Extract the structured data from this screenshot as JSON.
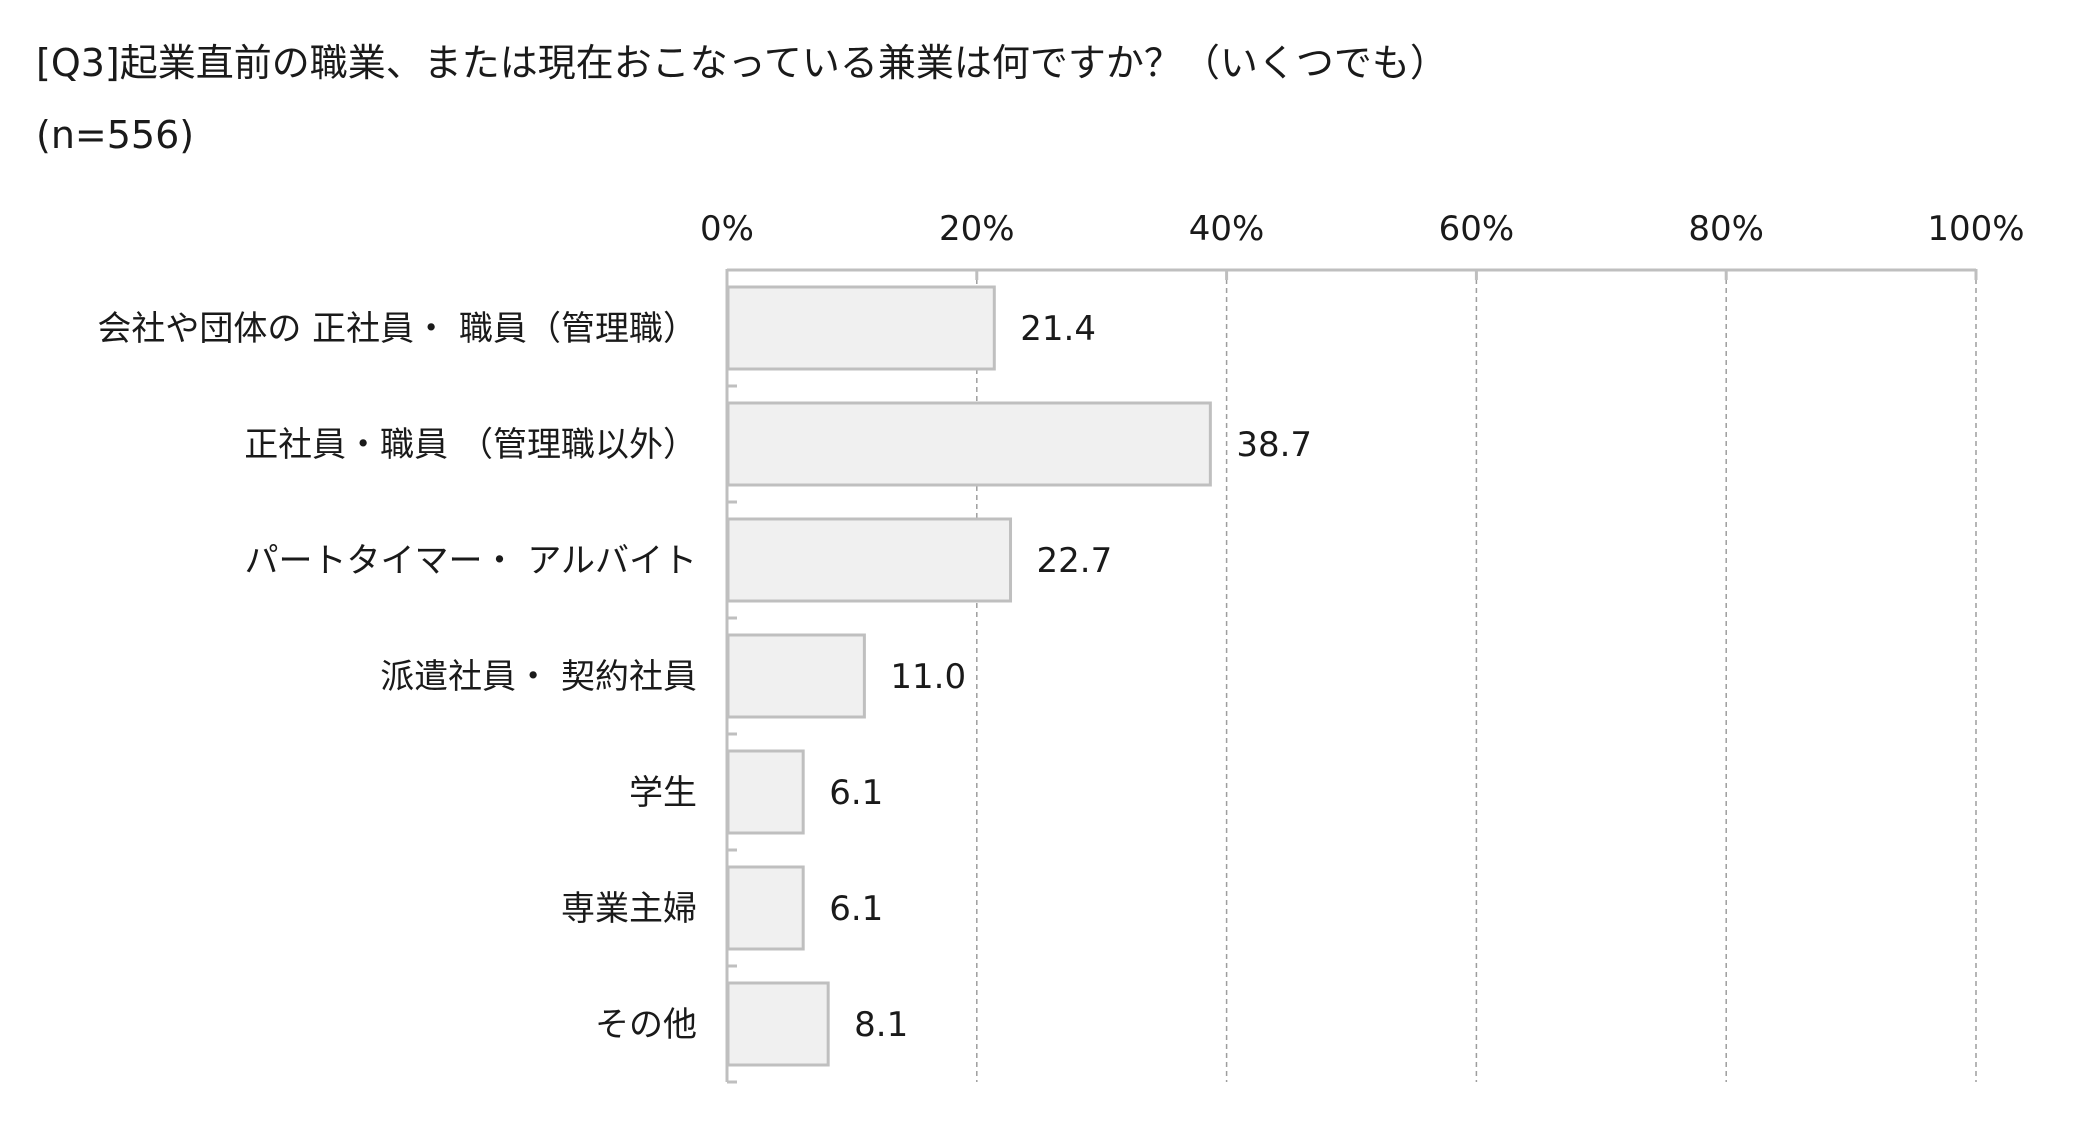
{
  "chart_data": {
    "type": "bar",
    "orientation": "horizontal",
    "title": "[Q3]起業直前の職業、または現在おこなっている兼業は何ですか？（いくつでも）",
    "subtitle": "(n=556)",
    "categories": [
      "会社や団体の 正社員・ 職員（管理職）",
      "正社員・職員 （管理職以外）",
      "パートタイマー・ アルバイト",
      "派遣社員・ 契約社員",
      "学生",
      "専業主婦",
      "その他"
    ],
    "values": [
      21.4,
      38.7,
      22.7,
      11.0,
      6.1,
      6.1,
      8.1
    ],
    "value_labels": [
      "21.4",
      "38.7",
      "22.7",
      "11.0",
      "6.1",
      "6.1",
      "8.1"
    ],
    "xlim": [
      0,
      100
    ],
    "x_ticks": [
      "0%",
      "20%",
      "40%",
      "60%",
      "80%",
      "100%"
    ],
    "x_tick_values": [
      0,
      20,
      40,
      60,
      80,
      100
    ],
    "grid": true,
    "axis_position": "top",
    "colors": {
      "bar_fill": "#f0f0f0",
      "bar_stroke": "#bfbfbf",
      "grid": "#9e9e9e",
      "axis": "#bfbfbf"
    }
  }
}
